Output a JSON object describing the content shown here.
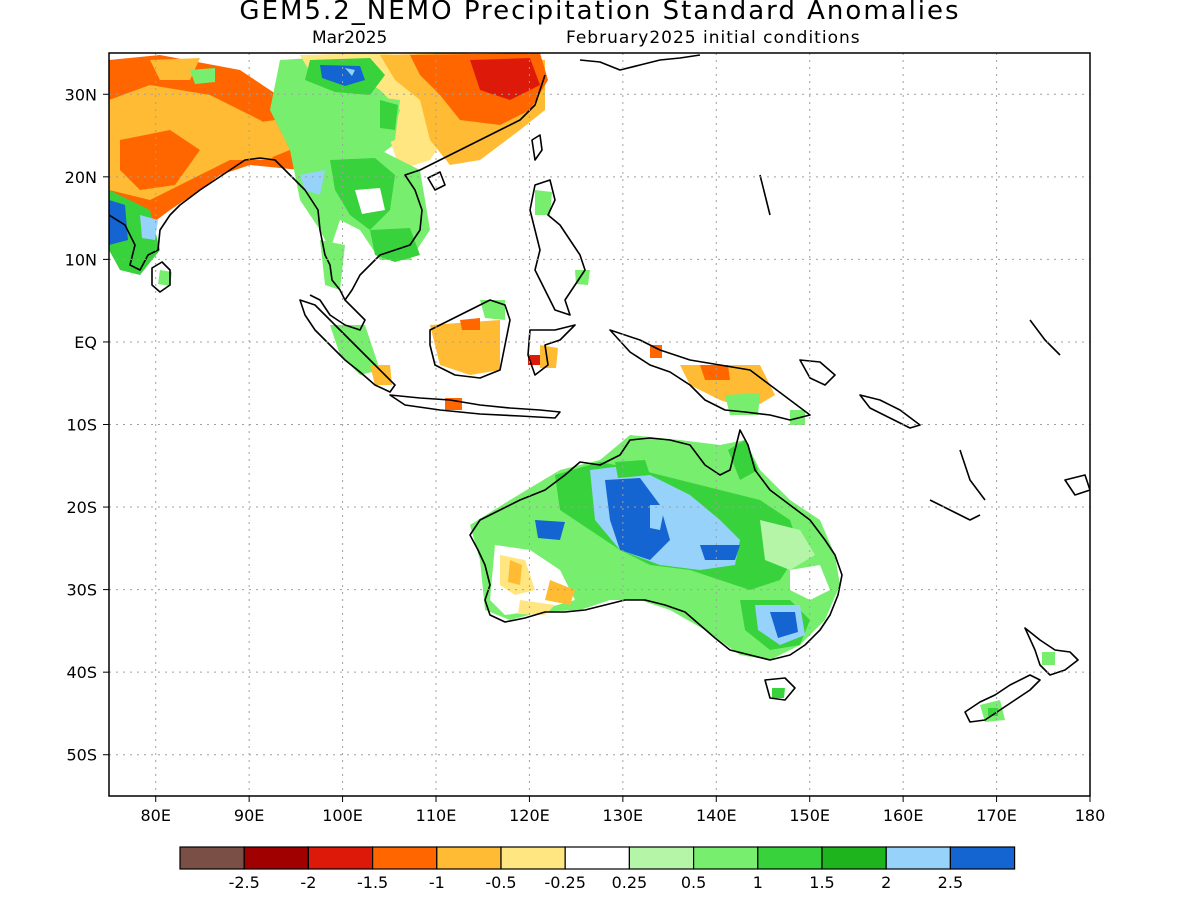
{
  "header": {
    "title": "GEM5.2_NEMO Precipitation Standard Anomalies",
    "valid_month": "Mar2025",
    "initial_conditions": "February2025 initial conditions"
  },
  "map": {
    "lon_range": [
      75,
      180
    ],
    "lat_range": [
      -55,
      35
    ],
    "lat_ticks": [
      {
        "lat": 30,
        "label": "30N"
      },
      {
        "lat": 20,
        "label": "20N"
      },
      {
        "lat": 10,
        "label": "10N"
      },
      {
        "lat": 0,
        "label": "EQ"
      },
      {
        "lat": -10,
        "label": "10S"
      },
      {
        "lat": -20,
        "label": "20S"
      },
      {
        "lat": -30,
        "label": "30S"
      },
      {
        "lat": -40,
        "label": "40S"
      },
      {
        "lat": -50,
        "label": "50S"
      }
    ],
    "lon_ticks": [
      {
        "lon": 80,
        "label": "80E"
      },
      {
        "lon": 90,
        "label": "90E"
      },
      {
        "lon": 100,
        "label": "100E"
      },
      {
        "lon": 110,
        "label": "110E"
      },
      {
        "lon": 120,
        "label": "120E"
      },
      {
        "lon": 130,
        "label": "130E"
      },
      {
        "lon": 140,
        "label": "140E"
      },
      {
        "lon": 150,
        "label": "150E"
      },
      {
        "lon": 160,
        "label": "160E"
      },
      {
        "lon": 170,
        "label": "170E"
      },
      {
        "lon": 180,
        "label": "180"
      }
    ],
    "grid": "dotted"
  },
  "legend": {
    "colors": [
      "#7a4f45",
      "#a00000",
      "#dd1a0a",
      "#ff6600",
      "#ffbb33",
      "#ffe680",
      "#ffffff",
      "#b4f5a8",
      "#78ee6e",
      "#37d23c",
      "#1eb41e",
      "#96d2fa",
      "#1464d2"
    ],
    "labels": [
      "-2.5",
      "-2",
      "-1.5",
      "-1",
      "-0.5",
      "-0.25",
      "0.25",
      "0.5",
      "1",
      "1.5",
      "2",
      "2.5"
    ]
  }
}
